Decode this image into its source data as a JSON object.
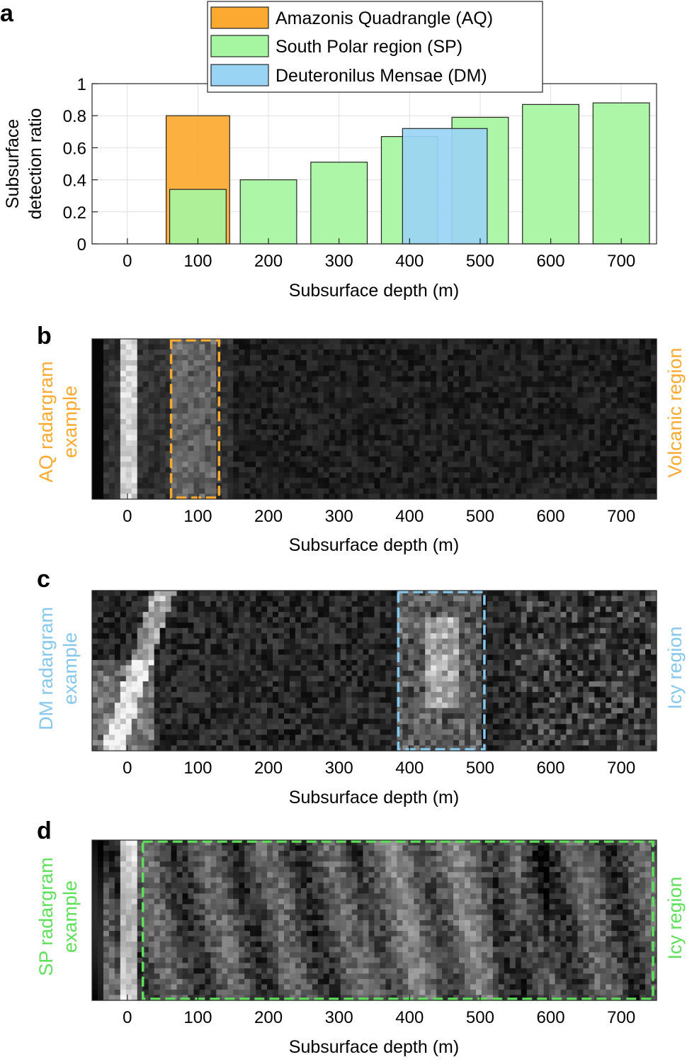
{
  "figure": {
    "panel_labels": [
      "a",
      "b",
      "c",
      "d"
    ]
  },
  "chart_data": [
    {
      "panel": "a",
      "type": "bar",
      "categories": [
        "0",
        "100",
        "200",
        "300",
        "400",
        "500",
        "600",
        "700"
      ],
      "xlabel": "Subsurface depth (m)",
      "ylabel_lines": [
        "Subsurface",
        "detection ratio"
      ],
      "xlim": [
        -50,
        750
      ],
      "ylim": [
        0,
        1
      ],
      "yticks": [
        "0",
        "0.2",
        "0.4",
        "0.6",
        "0.8",
        "1"
      ],
      "grid": true,
      "legend_position": "top-center",
      "series": [
        {
          "name": "Amazonis Quadrangle (AQ)",
          "color": "#FBA930",
          "points": [
            {
              "x": 100,
              "width": 90,
              "value": 0.8
            }
          ]
        },
        {
          "name": "South Polar region (SP)",
          "color": "#A6F5A0",
          "points": [
            {
              "x": 100,
              "width": 80,
              "value": 0.34
            },
            {
              "x": 200,
              "width": 80,
              "value": 0.4
            },
            {
              "x": 300,
              "width": 80,
              "value": 0.51
            },
            {
              "x": 400,
              "width": 80,
              "value": 0.67
            },
            {
              "x": 500,
              "width": 80,
              "value": 0.79
            },
            {
              "x": 600,
              "width": 80,
              "value": 0.87
            },
            {
              "x": 700,
              "width": 80,
              "value": 0.88
            }
          ]
        },
        {
          "name": "Deuteronilus Mensae (DM)",
          "color": "#9AD4F4",
          "points": [
            {
              "x": 450,
              "width": 120,
              "value": 0.72
            }
          ]
        }
      ]
    },
    {
      "panel": "b",
      "type": "heatmap",
      "xticks": [
        "0",
        "100",
        "200",
        "300",
        "400",
        "500",
        "600",
        "700"
      ],
      "xlabel": "Subsurface depth (m)",
      "left_label_lines": [
        "AQ radargram",
        "example"
      ],
      "right_label": "Volcanic region",
      "highlight_color": "#FBA930",
      "highlight_range": [
        62,
        130
      ],
      "surface_depth": 0,
      "seed": 11
    },
    {
      "panel": "c",
      "type": "heatmap",
      "xticks": [
        "0",
        "100",
        "200",
        "300",
        "400",
        "500",
        "600",
        "700"
      ],
      "xlabel": "Subsurface depth (m)",
      "left_label_lines": [
        "DM radargram",
        "example"
      ],
      "right_label": "Icy region",
      "highlight_color": "#85C8EC",
      "highlight_range": [
        384,
        506
      ],
      "surface_depth": 30,
      "seed": 23
    },
    {
      "panel": "d",
      "type": "heatmap",
      "xticks": [
        "0",
        "100",
        "200",
        "300",
        "400",
        "500",
        "600",
        "700"
      ],
      "xlabel": "Subsurface depth (m)",
      "left_label_lines": [
        "SP radargram",
        "example"
      ],
      "right_label": "Icy region",
      "highlight_color": "#5EE05A",
      "highlight_range": [
        22,
        745
      ],
      "surface_depth": 0,
      "seed": 37
    }
  ]
}
